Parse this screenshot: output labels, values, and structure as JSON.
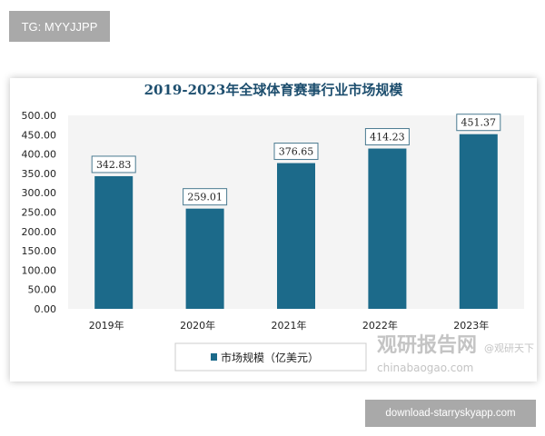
{
  "badges": {
    "top": "TG: MYYJJPP",
    "bottom": "download-starryskyapp.com"
  },
  "watermark": {
    "logo": "观研报告网",
    "site": "chinabaogao.com",
    "handle": "@观研天下"
  },
  "chart_data": {
    "type": "bar",
    "title": "2019-2023年全球体育赛事行业市场规模",
    "categories": [
      "2019年",
      "2020年",
      "2021年",
      "2022年",
      "2023年"
    ],
    "series": [
      {
        "name": "市场规模（亿美元）",
        "values": [
          342.83,
          259.01,
          376.65,
          414.23,
          451.37
        ]
      }
    ],
    "value_labels": [
      "342.83",
      "259.01",
      "376.65",
      "414.23",
      "451.37"
    ],
    "ylim": [
      0,
      500
    ],
    "yticks": [
      "0.00",
      "50.00",
      "100.00",
      "150.00",
      "200.00",
      "250.00",
      "300.00",
      "350.00",
      "400.00",
      "450.00",
      "500.00"
    ],
    "grid": false,
    "legend": "bottom",
    "colors": {
      "bar": "#1c6a8a",
      "title": "#1d4e6e",
      "plot_bg": "#f4f4f4"
    }
  }
}
